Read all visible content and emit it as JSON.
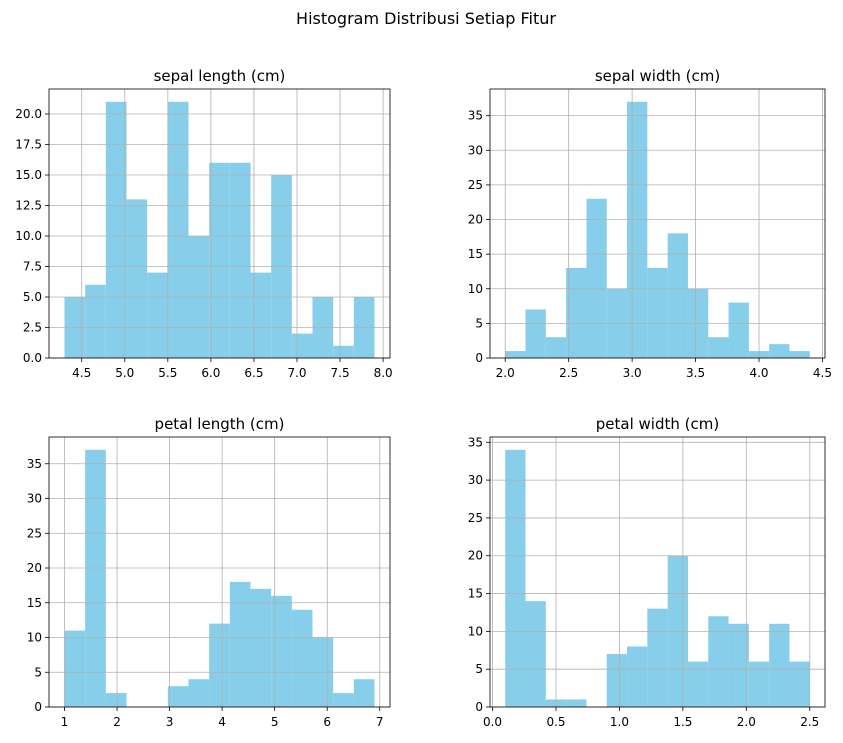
{
  "figure_title": "Histogram Distribusi Setiap Fitur",
  "colors": {
    "bar": "#87CEEB",
    "grid": "#b0b0b0",
    "axis": "#000000"
  },
  "chart_data": [
    {
      "type": "bar",
      "title": "sepal length (cm)",
      "xlim": [
        4.12,
        8.08
      ],
      "ylim": [
        0,
        22.05
      ],
      "grid": true,
      "bin_edges": [
        4.3,
        4.54,
        4.78,
        5.02,
        5.26,
        5.5,
        5.74,
        5.98,
        6.22,
        6.46,
        6.7,
        6.94,
        7.18,
        7.42,
        7.66,
        7.9
      ],
      "values": [
        5,
        6,
        21,
        13,
        7,
        21,
        10,
        16,
        16,
        7,
        15,
        2,
        5,
        1,
        5
      ],
      "xticks": [
        4.5,
        5.0,
        5.5,
        6.0,
        6.5,
        7.0,
        7.5,
        8.0
      ],
      "xtick_labels": [
        "4.5",
        "5.0",
        "5.5",
        "6.0",
        "6.5",
        "7.0",
        "7.5",
        "8.0"
      ],
      "yticks": [
        0,
        2.5,
        5,
        7.5,
        10,
        12.5,
        15,
        17.5,
        20
      ],
      "ytick_labels": [
        "0.0",
        "2.5",
        "5.0",
        "7.5",
        "10.0",
        "12.5",
        "15.0",
        "17.5",
        "20.0"
      ]
    },
    {
      "type": "bar",
      "title": "sepal width (cm)",
      "xlim": [
        1.88,
        4.52
      ],
      "ylim": [
        0,
        38.85
      ],
      "grid": true,
      "bin_edges": [
        2.0,
        2.16,
        2.32,
        2.48,
        2.64,
        2.8,
        2.96,
        3.12,
        3.28,
        3.44,
        3.6,
        3.76,
        3.92,
        4.08,
        4.24,
        4.4
      ],
      "values": [
        1,
        7,
        3,
        13,
        23,
        10,
        37,
        13,
        18,
        10,
        3,
        8,
        1,
        2,
        1
      ],
      "xticks": [
        2.0,
        2.5,
        3.0,
        3.5,
        4.0,
        4.5
      ],
      "xtick_labels": [
        "2.0",
        "2.5",
        "3.0",
        "3.5",
        "4.0",
        "4.5"
      ],
      "yticks": [
        0,
        5,
        10,
        15,
        20,
        25,
        30,
        35
      ],
      "ytick_labels": [
        "0",
        "5",
        "10",
        "15",
        "20",
        "25",
        "30",
        "35"
      ]
    },
    {
      "type": "bar",
      "title": "petal length (cm)",
      "xlim": [
        0.705,
        7.195
      ],
      "ylim": [
        0,
        38.85
      ],
      "grid": true,
      "bin_edges": [
        1.0,
        1.393,
        1.787,
        2.18,
        2.573,
        2.967,
        3.36,
        3.753,
        4.147,
        4.54,
        4.933,
        5.327,
        5.72,
        6.113,
        6.507,
        6.9
      ],
      "values": [
        11,
        37,
        2,
        0,
        0,
        3,
        4,
        12,
        18,
        17,
        16,
        14,
        10,
        2,
        4
      ],
      "xticks": [
        1,
        2,
        3,
        4,
        5,
        6,
        7
      ],
      "xtick_labels": [
        "1",
        "2",
        "3",
        "4",
        "5",
        "6",
        "7"
      ],
      "yticks": [
        0,
        5,
        10,
        15,
        20,
        25,
        30,
        35
      ],
      "ytick_labels": [
        "0",
        "5",
        "10",
        "15",
        "20",
        "25",
        "30",
        "35"
      ]
    },
    {
      "type": "bar",
      "title": "petal width (cm)",
      "xlim": [
        -0.02,
        2.62
      ],
      "ylim": [
        0,
        35.7
      ],
      "grid": true,
      "bin_edges": [
        0.1,
        0.26,
        0.42,
        0.58,
        0.74,
        0.9,
        1.06,
        1.22,
        1.38,
        1.54,
        1.7,
        1.86,
        2.02,
        2.18,
        2.34,
        2.5
      ],
      "values": [
        34,
        14,
        1,
        1,
        0,
        7,
        8,
        13,
        20,
        6,
        12,
        11,
        6,
        11,
        6
      ],
      "xticks": [
        0.0,
        0.5,
        1.0,
        1.5,
        2.0,
        2.5
      ],
      "xtick_labels": [
        "0.0",
        "0.5",
        "1.0",
        "1.5",
        "2.0",
        "2.5"
      ],
      "yticks": [
        0,
        5,
        10,
        15,
        20,
        25,
        30,
        35
      ],
      "ytick_labels": [
        "0",
        "5",
        "10",
        "15",
        "20",
        "25",
        "30",
        "35"
      ]
    }
  ]
}
